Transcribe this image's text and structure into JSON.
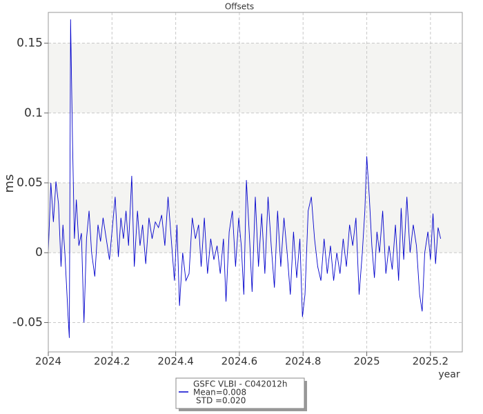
{
  "chart_data": {
    "type": "line",
    "title": "Offsets",
    "y_label": "ms",
    "x_label": "year",
    "xlim": [
      2024,
      2025.3
    ],
    "ylim": [
      -0.071,
      0.172
    ],
    "xticks": [
      2024,
      2024.2,
      2024.4,
      2024.6,
      2024.8,
      2025,
      2025.2
    ],
    "yticks": [
      -0.05,
      0,
      0.05,
      0.1,
      0.15
    ],
    "grid": true,
    "x": [
      2024.0,
      2024.008,
      2024.016,
      2024.024,
      2024.032,
      2024.04,
      2024.046,
      2024.052,
      2024.062,
      2024.066,
      2024.07,
      2024.076,
      2024.082,
      2024.088,
      2024.096,
      2024.104,
      2024.112,
      2024.12,
      2024.128,
      2024.136,
      2024.146,
      2024.156,
      2024.164,
      2024.172,
      2024.182,
      2024.192,
      2024.2,
      2024.21,
      2024.22,
      2024.228,
      2024.236,
      2024.244,
      2024.252,
      2024.262,
      2024.27,
      2024.28,
      2024.288,
      2024.296,
      2024.306,
      2024.316,
      2024.326,
      2024.336,
      2024.346,
      2024.356,
      2024.366,
      2024.376,
      2024.386,
      2024.396,
      2024.404,
      2024.412,
      2024.422,
      2024.432,
      2024.442,
      2024.452,
      2024.462,
      2024.472,
      2024.48,
      2024.49,
      2024.5,
      2024.51,
      2024.52,
      2024.53,
      2024.54,
      2024.55,
      2024.558,
      2024.568,
      2024.578,
      2024.588,
      2024.598,
      2024.606,
      2024.614,
      2024.622,
      2024.632,
      2024.64,
      2024.65,
      2024.66,
      2024.67,
      2024.68,
      2024.69,
      2024.7,
      2024.71,
      2024.72,
      2024.73,
      2024.74,
      2024.75,
      2024.76,
      2024.77,
      2024.78,
      2024.79,
      2024.798,
      2024.806,
      2024.816,
      2024.826,
      2024.836,
      2024.846,
      2024.856,
      2024.866,
      2024.876,
      2024.886,
      2024.896,
      2024.906,
      2024.916,
      2024.926,
      2024.936,
      2024.946,
      2024.956,
      2024.966,
      2024.976,
      2024.986,
      2024.994,
      2025.0,
      2025.008,
      2025.016,
      2025.024,
      2025.032,
      2025.04,
      2025.05,
      2025.06,
      2025.07,
      2025.08,
      2025.09,
      2025.1,
      2025.108,
      2025.116,
      2025.126,
      2025.136,
      2025.146,
      2025.156,
      2025.166,
      2025.174,
      2025.182,
      2025.192,
      2025.2,
      2025.208,
      2025.216,
      2025.224,
      2025.232
    ],
    "series": [
      {
        "name": "GSFC VLBI - C042012h",
        "color": "#0000cc",
        "values": [
          0.0,
          0.05,
          0.022,
          0.051,
          0.035,
          -0.01,
          0.02,
          0.0,
          -0.045,
          -0.061,
          0.167,
          0.08,
          0.01,
          0.038,
          0.005,
          0.014,
          -0.05,
          0.01,
          0.03,
          0.0,
          -0.017,
          0.02,
          0.008,
          0.025,
          0.01,
          -0.005,
          0.015,
          0.04,
          -0.003,
          0.025,
          0.01,
          0.03,
          0.005,
          0.055,
          -0.01,
          0.03,
          0.005,
          0.02,
          -0.008,
          0.025,
          0.01,
          0.022,
          0.018,
          0.027,
          0.005,
          0.04,
          0.01,
          -0.02,
          0.02,
          -0.038,
          0.0,
          -0.02,
          -0.015,
          0.025,
          0.01,
          0.02,
          -0.01,
          0.025,
          -0.015,
          0.01,
          -0.005,
          0.005,
          -0.015,
          0.01,
          -0.035,
          0.015,
          0.03,
          -0.01,
          0.025,
          0.005,
          -0.03,
          0.052,
          0.01,
          -0.028,
          0.04,
          -0.01,
          0.028,
          -0.015,
          0.04,
          0.005,
          -0.025,
          0.03,
          -0.01,
          0.025,
          0.0,
          -0.03,
          0.015,
          -0.018,
          0.01,
          -0.046,
          -0.03,
          0.03,
          0.04,
          0.01,
          -0.01,
          -0.02,
          0.01,
          -0.015,
          0.005,
          -0.02,
          0.0,
          -0.015,
          0.01,
          -0.01,
          0.02,
          0.005,
          0.025,
          -0.03,
          0.0,
          0.03,
          0.069,
          0.04,
          0.005,
          -0.018,
          0.015,
          0.0,
          0.03,
          -0.015,
          0.005,
          -0.012,
          0.02,
          -0.02,
          0.032,
          -0.005,
          0.04,
          0.0,
          0.02,
          0.005,
          -0.03,
          -0.042,
          0.0,
          0.015,
          -0.005,
          0.028,
          -0.008,
          0.018,
          0.01
        ]
      }
    ],
    "legend": {
      "mean": "Mean=0.008",
      "std": "STD =0.020"
    }
  }
}
